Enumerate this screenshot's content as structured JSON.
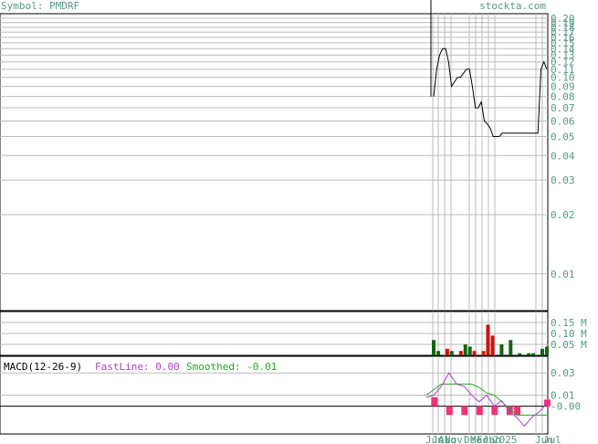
{
  "header": {
    "symbol_label": "Symbol: PMDRF",
    "site": "stockta.com"
  },
  "colors": {
    "text": "#559988",
    "grid": "#bbbbbb",
    "price_line": "#000000",
    "vol_up": "#116611",
    "vol_down": "#cc1111",
    "macd_fast": "#aa44cc",
    "macd_smooth": "#22aa22",
    "macd_hist": "#ee3377"
  },
  "chart_data": [
    {
      "type": "line",
      "name": "price",
      "y_scale": "log",
      "ylim": [
        0.0065,
        0.2
      ],
      "y_ticks": [
        0.01,
        0.02,
        0.03,
        0.04,
        0.05,
        0.06,
        0.07,
        0.08,
        0.09,
        0.1,
        0.11,
        0.12,
        0.13,
        0.14,
        0.15,
        0.16,
        0.17,
        0.18,
        0.19,
        0.2
      ],
      "y_tick_labels": [
        "0.01",
        "0.02",
        "0.03",
        "0.04",
        "0.05",
        "0.06",
        "0.07",
        "0.08",
        "0.09",
        "0.10",
        "0.11",
        "0.12",
        "0.13",
        "0.14",
        "0.15",
        "0.16",
        "0.17",
        "0.18",
        "0.19",
        "0.20"
      ],
      "x_tick_labels": [
        "Jun",
        "Jul",
        "Aug",
        "Nov",
        "Dec",
        "Mar",
        "Feb",
        "Jan",
        "2025",
        "Jun",
        "Jul"
      ],
      "series": [
        {
          "values": [
            0.08,
            0.11,
            0.13,
            0.14,
            0.14,
            0.12,
            0.09,
            0.095,
            0.1,
            0.1,
            0.105,
            0.11,
            0.11,
            0.09,
            0.07,
            0.07,
            0.075,
            0.06,
            0.058,
            0.055,
            0.05,
            0.05,
            0.05,
            0.052,
            0.052,
            0.052,
            0.052,
            0.052,
            0.052,
            0.052,
            0.052,
            0.052,
            0.052,
            0.052,
            0.052,
            0.052,
            0.11,
            0.12,
            0.11
          ]
        }
      ]
    },
    {
      "type": "bar",
      "name": "volume",
      "ylim": [
        0,
        0.2
      ],
      "y_tick_labels": [
        "0.15 M",
        "0.10 M",
        "0.05 M"
      ],
      "y_ticks": [
        0.15,
        0.1,
        0.05
      ],
      "values": [
        0.07,
        0.02,
        0.0,
        0.03,
        0.02,
        0.0,
        0.02,
        0.05,
        0.04,
        0.02,
        0.0,
        0.02,
        0.14,
        0.09,
        0.0,
        0.05,
        0.0,
        0.07,
        0.0,
        0.01,
        0.0,
        0.01,
        0.01,
        0.0,
        0.03,
        0.04
      ],
      "directions": [
        "up",
        "up",
        "up",
        "down",
        "up",
        "up",
        "down",
        "up",
        "up",
        "down",
        "up",
        "down",
        "down",
        "down",
        "up",
        "up",
        "up",
        "up",
        "up",
        "up",
        "up",
        "up",
        "up",
        "up",
        "up",
        "up"
      ]
    },
    {
      "type": "line",
      "name": "macd",
      "title": "MACD(12-26-9)",
      "fast_label": "FastLine: 0.00",
      "smooth_label": "Smoothed: -0.01",
      "ylim": [
        -0.025,
        0.045
      ],
      "y_ticks": [
        0.03,
        0.01,
        -0.0
      ],
      "y_tick_labels": [
        "0.03",
        "0.01",
        "-0.00"
      ],
      "series": [
        {
          "name": "FastLine",
          "values": [
            0.008,
            0.01,
            0.018,
            0.03,
            0.02,
            0.018,
            0.01,
            0.004,
            0.01,
            0.0,
            0.005,
            -0.005,
            -0.01,
            -0.018,
            -0.01,
            -0.005,
            0.003
          ]
        },
        {
          "name": "Smoothed",
          "values": [
            0.01,
            0.015,
            0.02,
            0.02,
            0.02,
            0.02,
            0.02,
            0.017,
            0.012,
            0.01,
            0.004,
            -0.002,
            -0.008,
            -0.008,
            -0.008,
            -0.008,
            -0.008
          ]
        },
        {
          "name": "Histogram",
          "values": [
            0.0,
            0.008,
            0.0,
            -0.008,
            0.0,
            -0.008,
            0.0,
            -0.008,
            0.0,
            -0.008,
            0.0,
            -0.008,
            -0.008,
            0.0,
            0.0,
            0.0,
            0.006
          ]
        }
      ]
    }
  ]
}
